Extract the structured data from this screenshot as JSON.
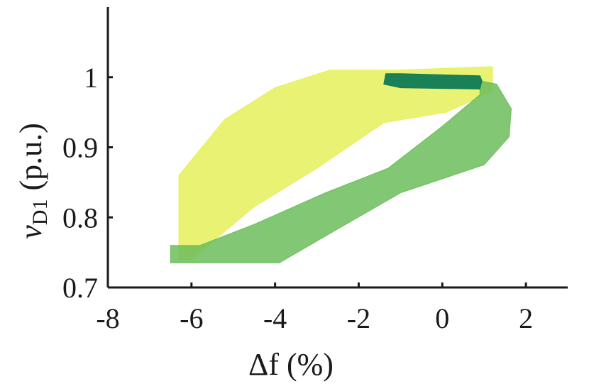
{
  "chart_data": {
    "type": "area",
    "title": "",
    "xlabel": "Δf (%)",
    "ylabel": "vD1 (p.u.)",
    "ylabel_parts": {
      "var": "v",
      "sub": "D1",
      "unit": "(p.u.)"
    },
    "xlim": [
      -8,
      3
    ],
    "ylim": [
      0.7,
      1.1
    ],
    "xticks": [
      -8,
      -6,
      -4,
      -2,
      0,
      2
    ],
    "xtick_labels": [
      "-8",
      "-6",
      "-4",
      "-2",
      "0",
      "2"
    ],
    "yticks": [
      0.7,
      0.8,
      0.9,
      1.0
    ],
    "ytick_labels": [
      "0.7",
      "0.8",
      "0.9",
      "1"
    ],
    "grid": false,
    "legend": false,
    "regions": [
      {
        "name": "upper",
        "color": "#e6f05a",
        "opacity": 0.85,
        "polygon": [
          [
            -6.3,
            0.74
          ],
          [
            -6.3,
            0.86
          ],
          [
            -5.2,
            0.94
          ],
          [
            -4.0,
            0.985
          ],
          [
            -2.7,
            1.01
          ],
          [
            -1.1,
            1.01
          ],
          [
            1.2,
            1.015
          ],
          [
            1.2,
            0.98
          ],
          [
            0.1,
            0.95
          ],
          [
            -1.4,
            0.935
          ],
          [
            -3.0,
            0.87
          ],
          [
            -4.5,
            0.815
          ],
          [
            -6.0,
            0.74
          ]
        ]
      },
      {
        "name": "lower",
        "color": "#6cbd5c",
        "opacity": 0.85,
        "polygon": [
          [
            -6.5,
            0.735
          ],
          [
            -6.5,
            0.76
          ],
          [
            -5.8,
            0.76
          ],
          [
            -4.5,
            0.79
          ],
          [
            -2.8,
            0.835
          ],
          [
            -1.3,
            0.87
          ],
          [
            0.0,
            0.93
          ],
          [
            0.7,
            0.965
          ],
          [
            0.9,
            0.975
          ],
          [
            0.9,
            0.995
          ],
          [
            1.3,
            0.99
          ],
          [
            1.65,
            0.955
          ],
          [
            1.6,
            0.915
          ],
          [
            1.0,
            0.875
          ],
          [
            -1.0,
            0.835
          ],
          [
            -2.6,
            0.78
          ],
          [
            -3.9,
            0.735
          ]
        ]
      },
      {
        "name": "cluster",
        "color": "#0f7a55",
        "opacity": 0.95,
        "polygon": [
          [
            -1.4,
            0.99
          ],
          [
            -1.35,
            1.005
          ],
          [
            -1.0,
            1.005
          ],
          [
            0.9,
            1.002
          ],
          [
            0.95,
            0.995
          ],
          [
            0.9,
            0.983
          ],
          [
            -1.0,
            0.985
          ],
          [
            -1.4,
            0.99
          ]
        ]
      }
    ]
  }
}
